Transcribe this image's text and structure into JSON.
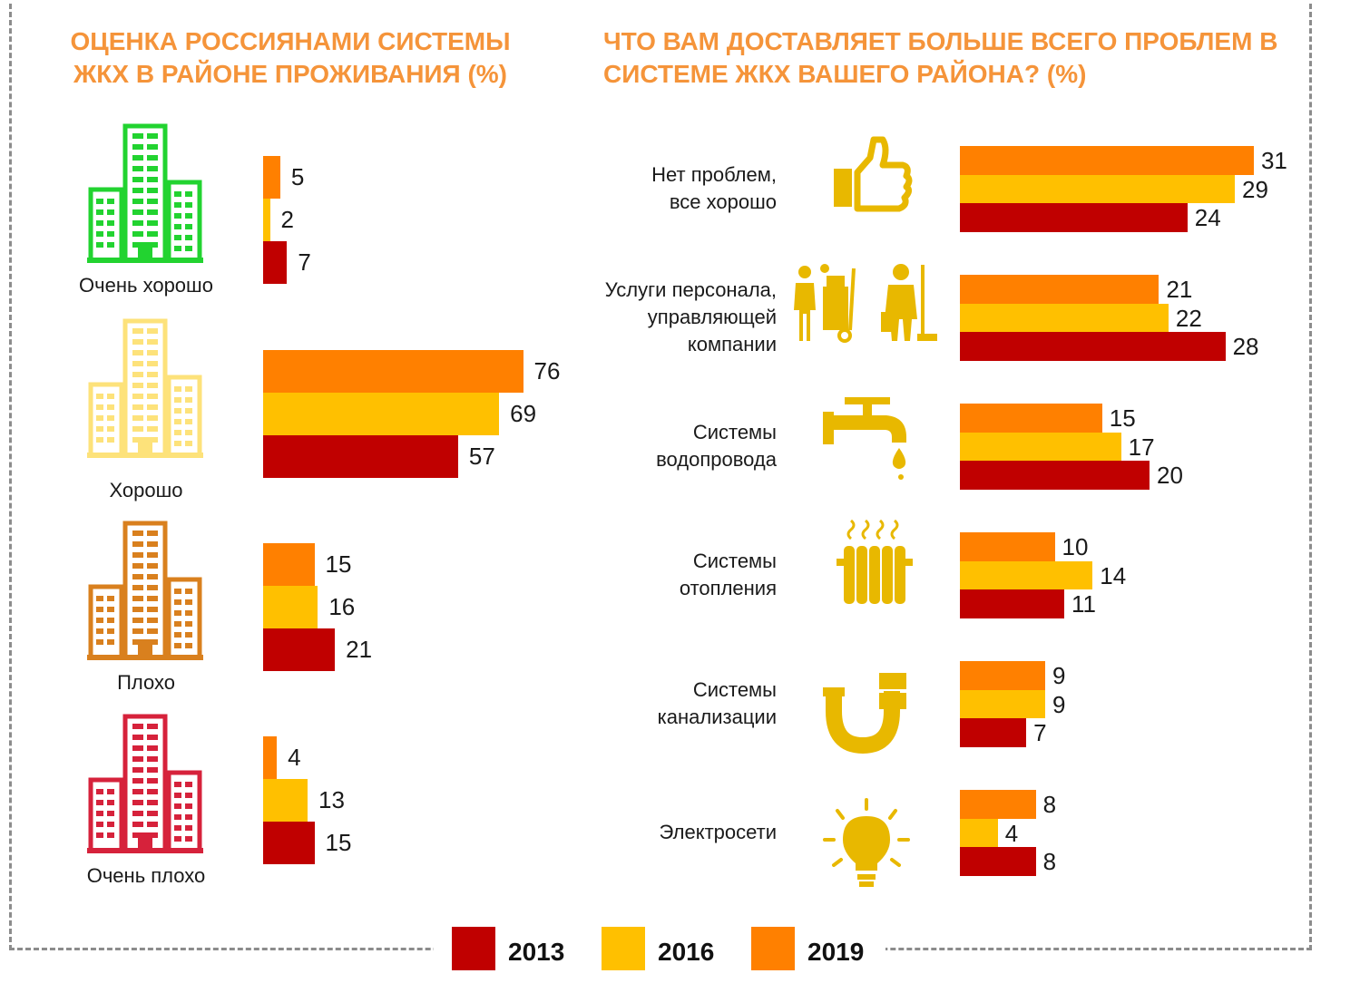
{
  "colors": {
    "y2013": "#c00000",
    "y2016": "#ffc000",
    "y2019": "#ff8000"
  },
  "titles": {
    "left": "ОЦЕНКА РОССИЯНАМИ СИСТЕМЫ ЖКХ В РАЙОНЕ ПРОЖИВАНИЯ (%)",
    "right": "ЧТО ВАМ ДОСТАВЛЯЕТ БОЛЬШЕ ВСЕГО ПРОБЛЕМ В СИСТЕМЕ ЖКХ ВАШЕГО РАЙОНА? (%)"
  },
  "legend": [
    {
      "label": "2013",
      "color": "#c00000"
    },
    {
      "label": "2016",
      "color": "#ffc000"
    },
    {
      "label": "2019",
      "color": "#ff8000"
    }
  ],
  "icons": {
    "ratings": [
      "building-icon-green",
      "building-icon-light-yellow",
      "building-icon-brown",
      "building-icon-red"
    ],
    "problems": [
      "thumbs-up-icon",
      "cleaning-staff-icon",
      "faucet-icon",
      "radiator-icon",
      "pipe-icon",
      "light-bulb-icon"
    ]
  },
  "chart_data": [
    {
      "type": "bar",
      "orientation": "horizontal",
      "title": "ОЦЕНКА РОССИЯНАМИ СИСТЕМЫ ЖКХ В РАЙОНЕ ПРОЖИВАНИЯ (%)",
      "categories": [
        "Очень хорошо",
        "Хорошо",
        "Плохо",
        "Очень плохо"
      ],
      "category_colors": [
        "#22d330",
        "#fde27a",
        "#d9801e",
        "#d6223b"
      ],
      "series": [
        {
          "name": "2019",
          "values": [
            5,
            76,
            15,
            4
          ]
        },
        {
          "name": "2016",
          "values": [
            2,
            69,
            16,
            13
          ]
        },
        {
          "name": "2013",
          "values": [
            7,
            57,
            21,
            15
          ]
        }
      ],
      "xlim": [
        0,
        100
      ],
      "grid": false,
      "legend_position": "bottom"
    },
    {
      "type": "bar",
      "orientation": "horizontal",
      "title": "ЧТО ВАМ ДОСТАВЛЯЕТ БОЛЬШЕ ВСЕГО ПРОБЛЕМ В СИСТЕМЕ ЖКХ ВАШЕГО РАЙОНА? (%)",
      "categories": [
        "Нет проблем,\nвсе хорошо",
        "Услуги персонала,\nуправляющей\nкомпании",
        "Системы\nводопровода",
        "Системы\nотопления",
        "Системы\nканализации",
        "Электросети"
      ],
      "series": [
        {
          "name": "2019",
          "values": [
            31,
            21,
            15,
            10,
            9,
            8
          ]
        },
        {
          "name": "2016",
          "values": [
            29,
            22,
            17,
            14,
            9,
            4
          ]
        },
        {
          "name": "2013",
          "values": [
            24,
            28,
            20,
            11,
            7,
            8
          ]
        }
      ],
      "xlim": [
        0,
        40
      ],
      "grid": false,
      "legend_position": "bottom"
    }
  ]
}
